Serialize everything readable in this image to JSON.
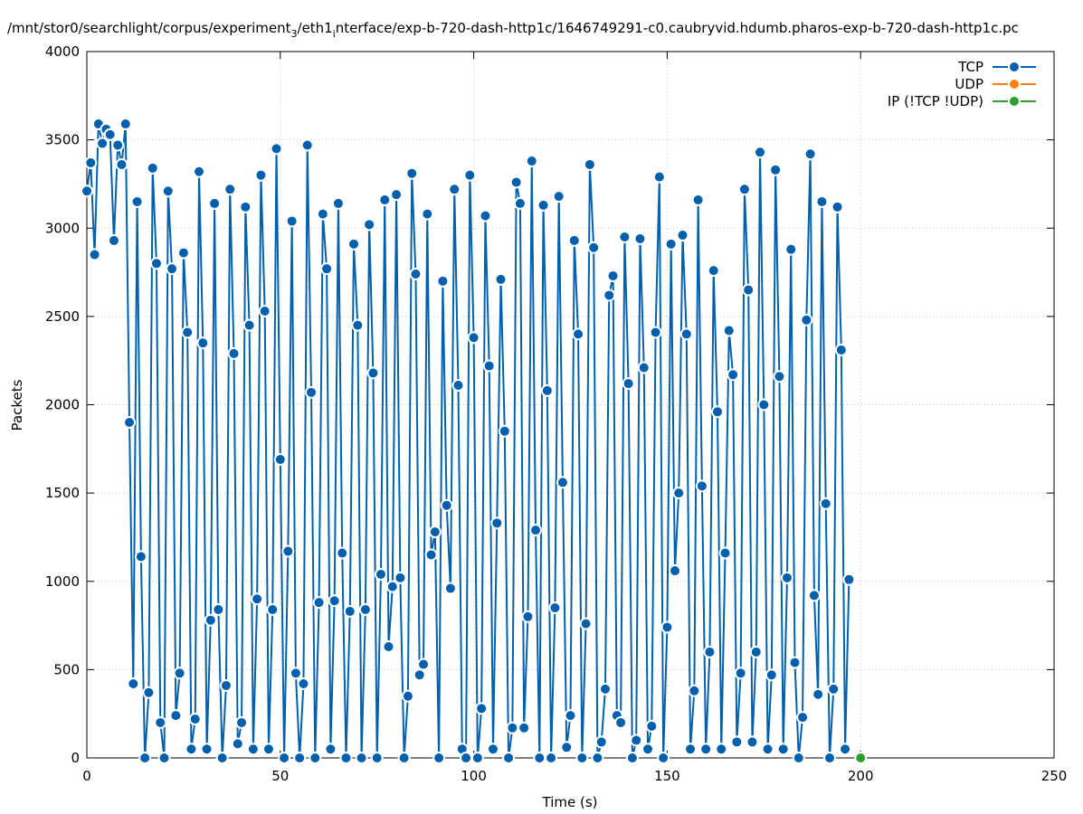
{
  "chart_data": {
    "type": "line",
    "title_parts": [
      {
        "text": "/mnt/stor0/searchlight/corpus/experiment",
        "subscript": false
      },
      {
        "text": "3",
        "subscript": true
      },
      {
        "text": "/eth1",
        "subscript": false
      },
      {
        "text": "i",
        "subscript": true
      },
      {
        "text": "nterface/exp-b-720-dash-http1c/1646749291-c0.caubryvid.hdumb.pharos-exp-b-720-dash-http1c.pc",
        "subscript": false
      }
    ],
    "x_label": "Time (s)",
    "y_label": "Packets",
    "xlim": [
      0,
      250
    ],
    "xticks": [
      0,
      50,
      100,
      150,
      200,
      250
    ],
    "ylim": [
      0,
      4000
    ],
    "yticks": [
      0,
      500,
      1000,
      1500,
      2000,
      2500,
      3000,
      3500,
      4000
    ],
    "grid": true,
    "legend": "top-right",
    "series": [
      {
        "name": "TCP",
        "color": "#0060ad",
        "x": [
          0,
          1,
          2,
          3,
          4,
          5,
          6,
          7,
          8,
          9,
          10,
          11,
          12,
          13,
          14,
          15,
          16,
          17,
          18,
          19,
          20,
          21,
          22,
          23,
          24,
          25,
          26,
          27,
          28,
          29,
          30,
          31,
          32,
          33,
          34,
          35,
          36,
          37,
          38,
          39,
          40,
          41,
          42,
          43,
          44,
          45,
          46,
          47,
          48,
          49,
          50,
          51,
          52,
          53,
          54,
          55,
          56,
          57,
          58,
          59,
          60,
          61,
          62,
          63,
          64,
          65,
          66,
          67,
          68,
          69,
          70,
          71,
          72,
          73,
          74,
          75,
          76,
          77,
          78,
          79,
          80,
          81,
          82,
          83,
          84,
          85,
          86,
          87,
          88,
          89,
          90,
          91,
          92,
          93,
          94,
          95,
          96,
          97,
          98,
          99,
          100,
          101,
          102,
          103,
          104,
          105,
          106,
          107,
          108,
          109,
          110,
          111,
          112,
          113,
          114,
          115,
          116,
          117,
          118,
          119,
          120,
          121,
          122,
          123,
          124,
          125,
          126,
          127,
          128,
          129,
          130,
          131,
          132,
          133,
          134,
          135,
          136,
          137,
          138,
          139,
          140,
          141,
          142,
          143,
          144,
          145,
          146,
          147,
          148,
          149,
          150,
          151,
          152,
          153,
          154,
          155,
          156,
          157,
          158,
          159,
          160,
          161,
          162,
          163,
          164,
          165,
          166,
          167,
          168,
          169,
          170,
          171,
          172,
          173,
          174,
          175,
          176,
          177,
          178,
          179,
          180,
          181,
          182,
          183,
          184,
          185,
          186,
          187,
          188,
          189,
          190,
          191,
          192,
          193,
          194,
          195,
          196,
          197
        ],
        "values": [
          3210,
          3370,
          2850,
          3590,
          3480,
          3560,
          3530,
          2930,
          3470,
          3360,
          3590,
          1900,
          420,
          3150,
          1140,
          0,
          370,
          3340,
          2800,
          200,
          0,
          3210,
          2770,
          240,
          480,
          2860,
          2410,
          50,
          220,
          3320,
          2350,
          50,
          780,
          3140,
          840,
          0,
          410,
          3220,
          2290,
          80,
          200,
          3120,
          2450,
          50,
          900,
          3300,
          2530,
          50,
          840,
          3450,
          1690,
          0,
          1170,
          3040,
          480,
          0,
          420,
          3470,
          2070,
          0,
          880,
          3080,
          2770,
          50,
          890,
          3140,
          1160,
          0,
          830,
          2910,
          2450,
          0,
          840,
          3020,
          2180,
          0,
          1040,
          3160,
          630,
          970,
          3190,
          1020,
          0,
          350,
          3310,
          2740,
          470,
          530,
          3080,
          1150,
          1280,
          0,
          2700,
          1430,
          960,
          3220,
          2110,
          50,
          0,
          3300,
          2380,
          0,
          280,
          3070,
          2220,
          50,
          1330,
          2710,
          1850,
          0,
          170,
          3260,
          3140,
          170,
          800,
          3380,
          1290,
          0,
          3130,
          2080,
          0,
          850,
          3180,
          1560,
          60,
          240,
          2930,
          2400,
          0,
          760,
          3360,
          2890,
          0,
          90,
          390,
          2620,
          2730,
          240,
          200,
          2950,
          2120,
          0,
          100,
          2940,
          2210,
          50,
          180,
          2410,
          3290,
          0,
          740,
          2910,
          1060,
          1500,
          2960,
          2400,
          50,
          380,
          3160,
          1540,
          50,
          600,
          2760,
          1960,
          50,
          1160,
          2420,
          2170,
          90,
          480,
          3220,
          2650,
          90,
          600,
          3430,
          2000,
          50,
          470,
          3330,
          2160,
          50,
          1020,
          2880,
          540,
          0,
          230,
          2480,
          3420,
          920,
          360,
          3150,
          1440,
          0,
          390,
          3120,
          2310,
          50,
          1010
        ]
      },
      {
        "name": "UDP",
        "color": "#ff7f0e",
        "x": [],
        "values": []
      },
      {
        "name": "IP (!TCP  !UDP)",
        "color": "#2ca02c",
        "x": [
          200
        ],
        "values": [
          0
        ]
      }
    ]
  }
}
